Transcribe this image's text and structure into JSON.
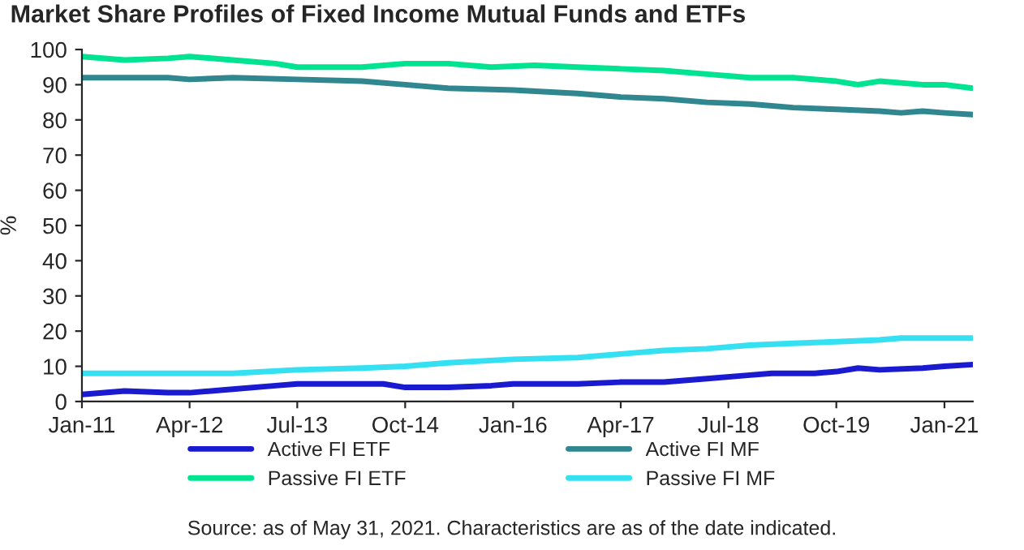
{
  "chart_data": {
    "type": "line",
    "title": "Market Share Profiles of Fixed Income Mutual Funds and ETFs",
    "ylabel": "%",
    "annotations": [
      "Source: as of May 31, 2021. Characteristics are as of the date indicated."
    ],
    "xlim": [
      "2011-01",
      "2021-05"
    ],
    "xticks": [
      {
        "value": "2011-01",
        "label": "Jan-11"
      },
      {
        "value": "2012-04",
        "label": "Apr-12"
      },
      {
        "value": "2013-07",
        "label": "Jul-13"
      },
      {
        "value": "2014-10",
        "label": "Oct-14"
      },
      {
        "value": "2016-01",
        "label": "Jan-16"
      },
      {
        "value": "2017-04",
        "label": "Apr-17"
      },
      {
        "value": "2018-07",
        "label": "Jul-18"
      },
      {
        "value": "2019-10",
        "label": "Oct-19"
      },
      {
        "value": "2021-01",
        "label": "Jan-21"
      }
    ],
    "ylim": [
      0,
      100
    ],
    "yticks": [
      0,
      10,
      20,
      30,
      40,
      50,
      60,
      70,
      80,
      90,
      100
    ],
    "grid": false,
    "legend": "bottom",
    "marker": "none",
    "line_style": "solid",
    "series": [
      {
        "name": "Active FI ETF",
        "color": "#1a1ad0",
        "x": [
          "2011-01",
          "2011-07",
          "2012-01",
          "2012-04",
          "2012-10",
          "2013-04",
          "2013-07",
          "2014-07",
          "2014-10",
          "2015-04",
          "2015-10",
          "2016-01",
          "2016-07",
          "2016-10",
          "2017-04",
          "2017-10",
          "2018-04",
          "2018-10",
          "2019-01",
          "2019-07",
          "2019-10",
          "2020-01",
          "2020-04",
          "2020-10",
          "2021-01",
          "2021-05"
        ],
        "values": [
          2,
          3,
          2.5,
          2.5,
          3.5,
          4.5,
          5,
          5,
          4,
          4,
          4.5,
          5,
          5,
          5,
          5.5,
          5.5,
          6.5,
          7.5,
          8,
          8,
          8.5,
          9.5,
          9,
          9.5,
          10,
          10.5
        ]
      },
      {
        "name": "Passive FI ETF",
        "color": "#00e391",
        "x": [
          "2011-01",
          "2011-07",
          "2012-01",
          "2012-04",
          "2012-10",
          "2013-04",
          "2013-07",
          "2014-04",
          "2014-10",
          "2015-04",
          "2015-10",
          "2016-04",
          "2016-10",
          "2017-04",
          "2017-10",
          "2018-04",
          "2018-10",
          "2019-04",
          "2019-10",
          "2020-01",
          "2020-04",
          "2020-10",
          "2021-01",
          "2021-05"
        ],
        "values": [
          98,
          97,
          97.5,
          98,
          97,
          96,
          95,
          95,
          96,
          96,
          95,
          95.5,
          95,
          94.5,
          94,
          93,
          92,
          92,
          91,
          90,
          91,
          90,
          90,
          89
        ]
      },
      {
        "name": "Active FI MF",
        "color": "#31878f",
        "x": [
          "2011-01",
          "2012-01",
          "2012-04",
          "2012-10",
          "2013-07",
          "2014-04",
          "2014-10",
          "2015-04",
          "2016-01",
          "2016-10",
          "2017-04",
          "2017-10",
          "2018-04",
          "2018-10",
          "2019-04",
          "2019-10",
          "2020-04",
          "2020-07",
          "2020-10",
          "2021-01",
          "2021-05"
        ],
        "values": [
          92,
          92,
          91.5,
          92,
          91.5,
          91,
          90,
          89,
          88.5,
          87.5,
          86.5,
          86,
          85,
          84.5,
          83.5,
          83,
          82.5,
          82,
          82.5,
          82,
          81.5
        ]
      },
      {
        "name": "Passive FI MF",
        "color": "#35e0f2",
        "x": [
          "2011-01",
          "2012-01",
          "2012-10",
          "2013-07",
          "2014-04",
          "2014-10",
          "2015-04",
          "2016-01",
          "2016-10",
          "2017-04",
          "2017-10",
          "2018-04",
          "2018-10",
          "2019-04",
          "2019-10",
          "2020-04",
          "2020-07",
          "2021-01",
          "2021-05"
        ],
        "values": [
          8,
          8,
          8,
          9,
          9.5,
          10,
          11,
          12,
          12.5,
          13.5,
          14.5,
          15,
          16,
          16.5,
          17,
          17.5,
          18,
          18,
          18
        ]
      }
    ]
  }
}
